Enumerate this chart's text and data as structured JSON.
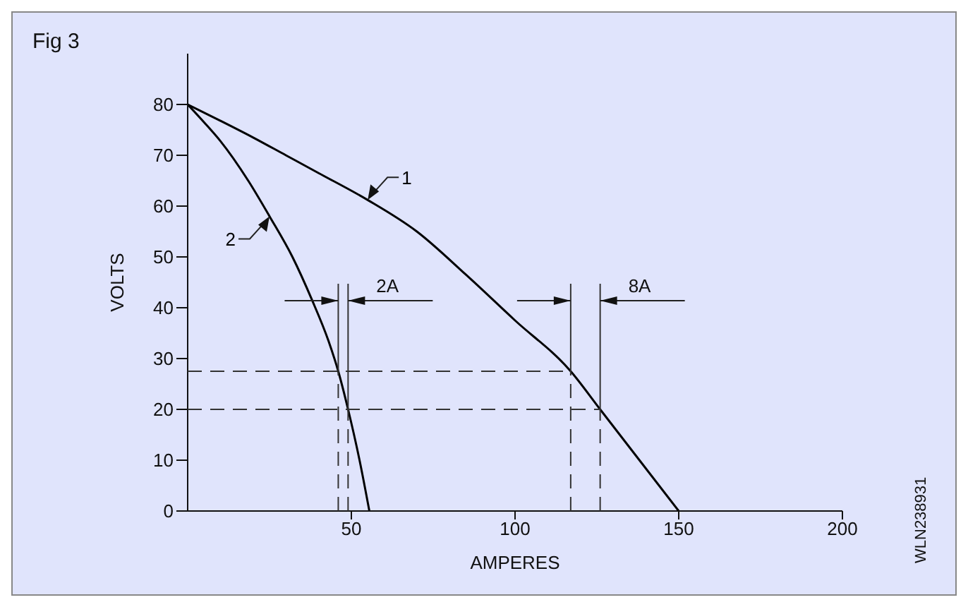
{
  "chart_data": {
    "type": "line",
    "title": "Fig 3",
    "xlabel": "AMPERES",
    "ylabel": "VOLTS",
    "xlim": [
      0,
      200
    ],
    "xticks": [
      50,
      100,
      150,
      200
    ],
    "ylim": [
      0,
      90
    ],
    "yticks": [
      0,
      10,
      20,
      30,
      40,
      50,
      60,
      70,
      80
    ],
    "grid": false,
    "marker": "none",
    "line_style": "solid",
    "series": [
      {
        "name": "1",
        "color": "#000000",
        "x": [
          0,
          10,
          20,
          30,
          40,
          55,
          70,
          85,
          100,
          117,
          126,
          138,
          150
        ],
        "values": [
          80,
          76.8,
          73.5,
          70,
          66.5,
          61.2,
          55,
          46.5,
          37.5,
          27.5,
          20,
          10,
          0
        ]
      },
      {
        "name": "2",
        "color": "#000000",
        "x": [
          0,
          5,
          10,
          18.5,
          25,
          32,
          38,
          43,
          46,
          49,
          52.5,
          55.5
        ],
        "values": [
          80,
          76.5,
          72.8,
          65,
          58,
          50,
          41.5,
          33.5,
          27.5,
          20,
          10,
          0
        ]
      }
    ],
    "ref_lines": [
      {
        "axis": "y",
        "value": 27.5,
        "line_style": "dashed"
      },
      {
        "axis": "y",
        "value": 20,
        "line_style": "dashed"
      },
      {
        "axis": "x",
        "value": 46,
        "line_style": "dashed"
      },
      {
        "axis": "x",
        "value": 49,
        "line_style": "dashed"
      },
      {
        "axis": "x",
        "value": 117,
        "line_style": "dashed"
      },
      {
        "axis": "x",
        "value": 126,
        "line_style": "dashed"
      }
    ],
    "annotations": [
      "2A",
      "8A",
      "WLN238931"
    ]
  }
}
